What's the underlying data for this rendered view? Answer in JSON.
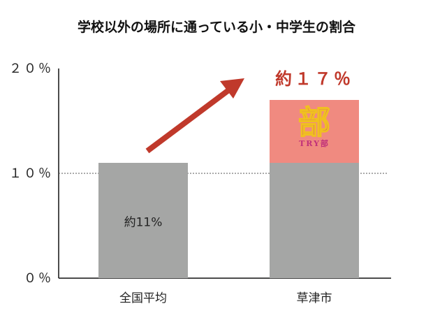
{
  "chart_data": {
    "type": "bar",
    "title": "学校以外の場所に通っている小・中学生の割合",
    "categories": [
      "全国平均",
      "草津市"
    ],
    "values": [
      11,
      11
    ],
    "increase": {
      "category": "草津市",
      "from": 11,
      "to": 17,
      "label": "約１７％"
    },
    "data_labels": [
      "約11%",
      ""
    ],
    "y_ticks": [
      {
        "value": 0,
        "label": "０％"
      },
      {
        "value": 10,
        "label": "１０％"
      },
      {
        "value": 20,
        "label": "２０％"
      }
    ],
    "ylim": [
      0,
      20
    ],
    "reference_line": 10,
    "xlabel": "",
    "ylabel": "",
    "logo": {
      "main": "部",
      "sub": "TRY部"
    },
    "colors": {
      "bar": "#a5a6a5",
      "increase": "#f08a80",
      "arrow": "#c0392b",
      "callout": "#c0392b",
      "logo_main": "#d23c86",
      "logo_accent": "#f0c020",
      "logo_sub": "#c0307a"
    }
  }
}
